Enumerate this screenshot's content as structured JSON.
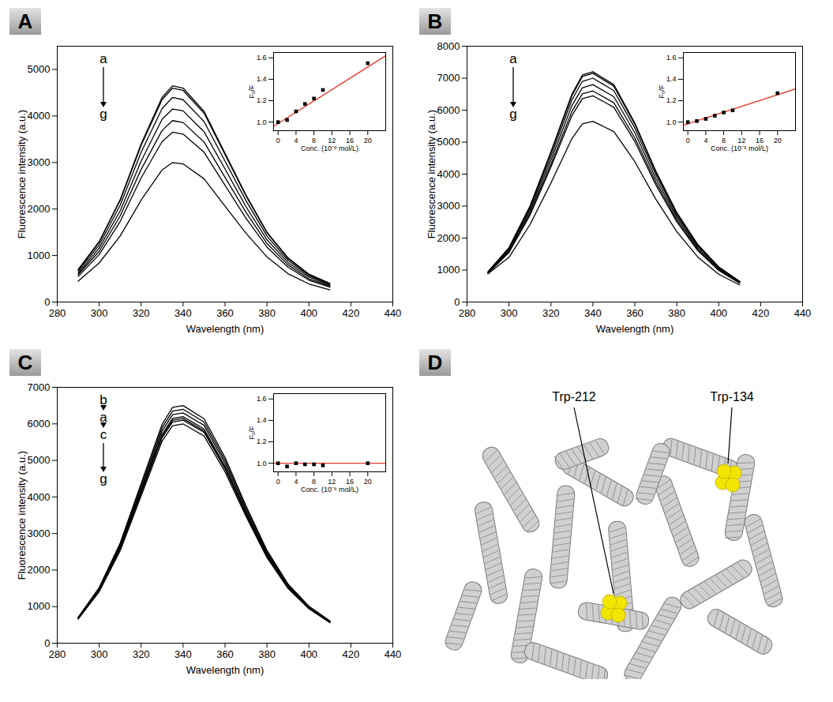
{
  "chart_data": [
    {
      "panel": "A",
      "type": "line",
      "x_label": "Wavelength (nm)",
      "y_label": "Fluorescence intensity (a.u.)",
      "x": [
        290,
        300,
        310,
        320,
        330,
        335,
        340,
        350,
        360,
        370,
        380,
        390,
        400,
        410
      ],
      "xlim": [
        280,
        440
      ],
      "xticks": [
        280,
        300,
        320,
        340,
        360,
        380,
        400,
        420,
        440
      ],
      "ylim": [
        0,
        5500
      ],
      "yticks": [
        0,
        1000,
        2000,
        3000,
        4000,
        5000
      ],
      "color": "#000000",
      "annotation": [
        "a",
        "g"
      ],
      "series": [
        {
          "values": [
            700,
            1300,
            2200,
            3400,
            4400,
            4650,
            4600,
            4100,
            3200,
            2300,
            1500,
            950,
            600,
            400
          ]
        },
        {
          "values": [
            690,
            1290,
            2180,
            3370,
            4350,
            4600,
            4550,
            4060,
            3170,
            2280,
            1490,
            940,
            590,
            390
          ]
        },
        {
          "values": [
            660,
            1230,
            2080,
            3220,
            4160,
            4400,
            4350,
            3880,
            3030,
            2180,
            1420,
            900,
            570,
            380
          ]
        },
        {
          "values": [
            620,
            1160,
            1960,
            3030,
            3930,
            4150,
            4110,
            3660,
            2860,
            2050,
            1340,
            850,
            540,
            360
          ]
        },
        {
          "values": [
            590,
            1090,
            1850,
            2850,
            3690,
            3900,
            3860,
            3440,
            2680,
            1930,
            1260,
            800,
            500,
            340
          ]
        },
        {
          "values": [
            550,
            1020,
            1730,
            2670,
            3450,
            3650,
            3610,
            3220,
            2510,
            1800,
            1180,
            750,
            470,
            320
          ]
        },
        {
          "values": [
            450,
            840,
            1420,
            2190,
            2840,
            3000,
            2970,
            2650,
            2060,
            1480,
            970,
            610,
            390,
            260
          ]
        }
      ],
      "inset": {
        "type": "scatter",
        "marker": "square",
        "color": "#000000",
        "x_label": "Conc. (10⁻⁶ mol/L)",
        "y_label": "F₀/F",
        "x": [
          0,
          2,
          4,
          6,
          8,
          10,
          20
        ],
        "values": [
          1.0,
          1.02,
          1.1,
          1.17,
          1.22,
          1.3,
          1.55
        ],
        "xlim": [
          -1,
          24
        ],
        "xticks": [
          0,
          4,
          8,
          12,
          16,
          20
        ],
        "ylim": [
          0.92,
          1.65
        ],
        "yticks": [
          {
            "value": 1,
            "label": "1.0"
          },
          1.2,
          1.4,
          1.6
        ],
        "fit": {
          "x": [
            -1,
            24
          ],
          "values": [
            0.96,
            1.62
          ],
          "color": "#e8392c"
        }
      }
    },
    {
      "panel": "B",
      "type": "line",
      "x_label": "Wavelength (nm)",
      "y_label": "Fluorescence intensity (a.u.)",
      "x": [
        290,
        300,
        310,
        320,
        330,
        335,
        340,
        350,
        360,
        370,
        380,
        390,
        400,
        410
      ],
      "xlim": [
        280,
        440
      ],
      "xticks": [
        280,
        300,
        320,
        340,
        360,
        380,
        400,
        420,
        440
      ],
      "ylim": [
        0,
        8000
      ],
      "yticks": [
        0,
        1000,
        2000,
        3000,
        4000,
        5000,
        6000,
        7000,
        8000
      ],
      "color": "#000000",
      "annotation": [
        "a",
        "g"
      ],
      "series": [
        {
          "values": [
            950,
            1700,
            3000,
            4700,
            6500,
            7100,
            7200,
            6800,
            5600,
            4100,
            2800,
            1800,
            1100,
            650
          ]
        },
        {
          "values": [
            940,
            1690,
            2980,
            4670,
            6450,
            7050,
            7150,
            6750,
            5560,
            4070,
            2780,
            1790,
            1090,
            640
          ]
        },
        {
          "values": [
            930,
            1660,
            2920,
            4570,
            6320,
            6900,
            7000,
            6610,
            5440,
            3990,
            2720,
            1750,
            1070,
            630
          ]
        },
        {
          "values": [
            920,
            1620,
            2850,
            4440,
            6140,
            6700,
            6800,
            6420,
            5290,
            3870,
            2650,
            1700,
            1040,
            620
          ]
        },
        {
          "values": [
            910,
            1580,
            2770,
            4310,
            5960,
            6510,
            6600,
            6230,
            5130,
            3760,
            2570,
            1650,
            1010,
            600
          ]
        },
        {
          "values": [
            900,
            1550,
            2710,
            4220,
            5830,
            6360,
            6450,
            6090,
            5020,
            3670,
            2510,
            1610,
            990,
            590
          ]
        },
        {
          "values": [
            880,
            1400,
            2420,
            3720,
            5110,
            5570,
            5650,
            5330,
            4390,
            3220,
            2200,
            1410,
            870,
            530
          ]
        }
      ],
      "inset": {
        "type": "scatter",
        "marker": "square",
        "color": "#000000",
        "x_label": "Conc. (10⁻⁶ mol/L)",
        "y_label": "F₀/F",
        "x": [
          0,
          2,
          4,
          6,
          8,
          10,
          20
        ],
        "values": [
          1.0,
          1.01,
          1.03,
          1.06,
          1.09,
          1.11,
          1.27
        ],
        "xlim": [
          -1,
          24
        ],
        "xticks": [
          0,
          4,
          8,
          12,
          16,
          20
        ],
        "ylim": [
          0.92,
          1.65
        ],
        "yticks": [
          {
            "value": 1,
            "label": "1.0"
          },
          1.2,
          1.4,
          1.6
        ],
        "fit": {
          "x": [
            -1,
            24
          ],
          "values": [
            0.97,
            1.31
          ],
          "color": "#e8392c"
        }
      }
    },
    {
      "panel": "C",
      "type": "line",
      "x_label": "Wavelength (nm)",
      "y_label": "Fluorescence intensity (a.u.)",
      "x": [
        290,
        300,
        310,
        320,
        330,
        335,
        340,
        350,
        360,
        370,
        380,
        390,
        400,
        410
      ],
      "xlim": [
        280,
        440
      ],
      "xticks": [
        280,
        300,
        320,
        340,
        360,
        380,
        400,
        420,
        440
      ],
      "ylim": [
        0,
        7000
      ],
      "yticks": [
        0,
        1000,
        2000,
        3000,
        4000,
        5000,
        6000,
        7000
      ],
      "color": "#000000",
      "annotation": [
        "b",
        "a",
        "c",
        "g"
      ],
      "series": [
        {
          "values": [
            710,
            1520,
            2740,
            4370,
            5990,
            6450,
            6500,
            6140,
            5080,
            3760,
            2540,
            1620,
            1010,
            610
          ]
        },
        {
          "values": [
            700,
            1500,
            2700,
            4300,
            5900,
            6350,
            6400,
            6050,
            5000,
            3700,
            2500,
            1600,
            1000,
            600
          ]
        },
        {
          "values": [
            690,
            1480,
            2660,
            4230,
            5810,
            6250,
            6300,
            5960,
            4920,
            3640,
            2460,
            1580,
            980,
            590
          ]
        },
        {
          "values": [
            680,
            1450,
            2620,
            4170,
            5720,
            6150,
            6200,
            5860,
            4840,
            3580,
            2420,
            1550,
            970,
            580
          ]
        },
        {
          "values": [
            675,
            1440,
            2600,
            4130,
            5670,
            6100,
            6150,
            5810,
            4800,
            3560,
            2400,
            1540,
            960,
            575
          ]
        },
        {
          "values": [
            670,
            1430,
            2580,
            4100,
            5620,
            6050,
            6100,
            5770,
            4770,
            3530,
            2380,
            1530,
            950,
            570
          ]
        },
        {
          "values": [
            660,
            1410,
            2530,
            4030,
            5530,
            5950,
            6000,
            5670,
            4690,
            3470,
            2340,
            1500,
            940,
            560
          ]
        }
      ],
      "inset": {
        "type": "scatter",
        "marker": "square",
        "color": "#000000",
        "x_label": "Conc. (10⁻⁶ mol/L)",
        "y_label": "F₀/F",
        "x": [
          0,
          2,
          4,
          6,
          8,
          10,
          20
        ],
        "values": [
          1.0,
          0.97,
          1.0,
          0.99,
          0.99,
          0.98,
          1.0
        ],
        "xlim": [
          -1,
          24
        ],
        "xticks": [
          0,
          4,
          8,
          12,
          16,
          20
        ],
        "ylim": [
          0.92,
          1.65
        ],
        "yticks": [
          {
            "value": 1,
            "label": "1.0"
          },
          1.2,
          1.4,
          1.6
        ],
        "fit": {
          "x": [
            -1,
            24
          ],
          "values": [
            1.0,
            1.0
          ],
          "color": "#e8392c"
        }
      }
    }
  ],
  "diagram": {
    "panel": "D",
    "labels": [
      "Trp-212",
      "Trp-134"
    ]
  }
}
